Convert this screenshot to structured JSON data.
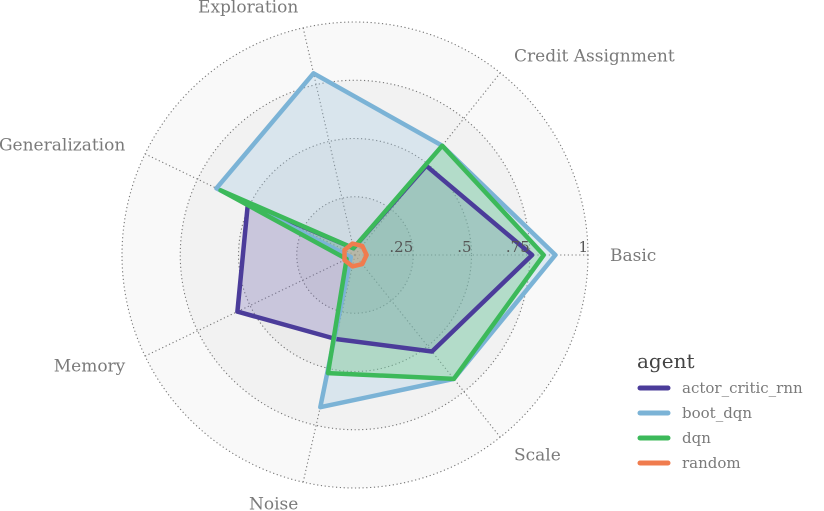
{
  "chart_data": {
    "type": "radar",
    "axes": [
      "Basic",
      "Credit Assignment",
      "Exploration",
      "Generalization",
      "Memory",
      "Noise",
      "Scale"
    ],
    "rlim": [
      0,
      1
    ],
    "rticks": [
      0.25,
      0.5,
      0.75,
      1
    ],
    "rtick_labels": [
      ".25",
      ".5",
      ".75",
      "1"
    ],
    "grid": true,
    "legend": {
      "title": "agent",
      "placement": "right"
    },
    "series": [
      {
        "name": "actor_critic_rnn",
        "color": "#4b3c9a",
        "fill": "#7b6fb8",
        "values": [
          0.76,
          0.49,
          0.03,
          0.51,
          0.56,
          0.37,
          0.53
        ]
      },
      {
        "name": "boot_dqn",
        "color": "#7bb3d6",
        "fill": "#9ec6e0",
        "values": [
          0.86,
          0.6,
          0.8,
          0.66,
          0.02,
          0.67,
          0.68
        ]
      },
      {
        "name": "dqn",
        "color": "#3cb95a",
        "fill": "#5ec776",
        "values": [
          0.81,
          0.6,
          0.03,
          0.64,
          0.04,
          0.52,
          0.68
        ]
      },
      {
        "name": "random",
        "color": "#f07c4e",
        "fill": "#f5a07e",
        "values": [
          0.05,
          0.05,
          0.05,
          0.05,
          0.05,
          0.05,
          0.05
        ]
      }
    ]
  }
}
